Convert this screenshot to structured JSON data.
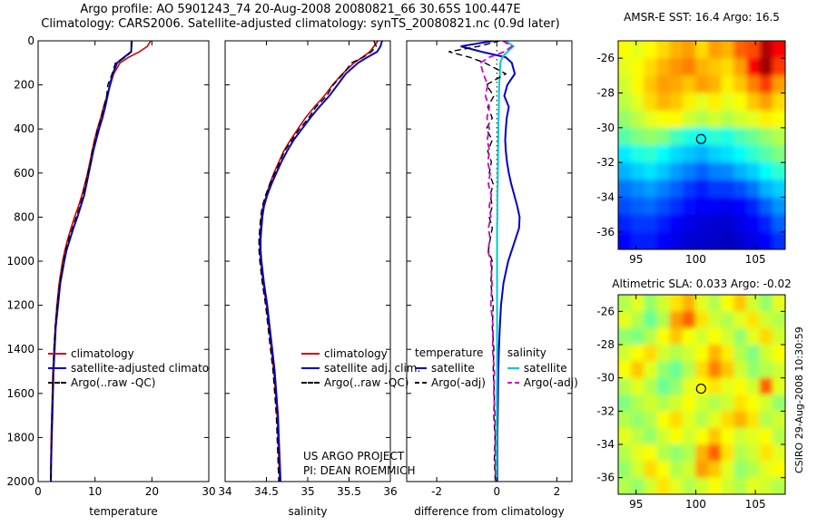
{
  "header": {
    "line1": "Argo profile: AO 5901243_74 20-Aug-2008 20080821_66 30.65S 100.447E",
    "line2": "Climatology: CARS2006. Satellite-adjusted climatology: synTS_20080821.nc (0.9d later)"
  },
  "footer": {
    "credit": "CSIRO 29-Aug-2008 10:30:59"
  },
  "colors": {
    "climatology": "#cc0000",
    "satellite_adjusted": "#0000cc",
    "argo": "#000000",
    "salinity_satellite": "#00cccc",
    "salinity_argo": "#cc00cc"
  },
  "chart_data": [
    {
      "id": "temperature_profile",
      "type": "line",
      "xlabel": "temperature",
      "xlim": [
        0,
        30
      ],
      "xticks": [
        0,
        10,
        20,
        30
      ],
      "ylim": [
        0,
        2000
      ],
      "yticks": [
        0,
        200,
        400,
        600,
        800,
        1000,
        1200,
        1400,
        1600,
        1800,
        2000
      ],
      "depths": [
        0,
        25,
        50,
        75,
        100,
        150,
        200,
        250,
        300,
        350,
        400,
        450,
        500,
        550,
        600,
        650,
        700,
        750,
        800,
        850,
        900,
        950,
        1000,
        1100,
        1200,
        1300,
        1400,
        1500,
        1600,
        1700,
        1800,
        1900,
        2000
      ],
      "series": [
        {
          "name": "climatology",
          "color": "#cc0000",
          "dash": false,
          "width": 1.6,
          "values": [
            19.8,
            19.2,
            17.8,
            15.9,
            14.4,
            13.3,
            12.7,
            12.1,
            11.5,
            11.0,
            10.4,
            9.9,
            9.5,
            9.1,
            8.7,
            8.2,
            7.7,
            7.1,
            6.4,
            5.8,
            5.2,
            4.7,
            4.3,
            3.7,
            3.3,
            3.0,
            2.8,
            2.6,
            2.5,
            2.4,
            2.3,
            2.25,
            2.2
          ]
        },
        {
          "name": "satellite-adjusted climatology",
          "color": "#0000cc",
          "dash": false,
          "width": 2,
          "values": [
            16.4,
            16.4,
            16.35,
            15.1,
            13.9,
            13.1,
            12.6,
            12.2,
            11.8,
            11.3,
            10.7,
            10.2,
            9.7,
            9.3,
            8.9,
            8.5,
            8.1,
            7.5,
            6.9,
            6.2,
            5.6,
            5.0,
            4.6,
            3.9,
            3.5,
            3.1,
            2.9,
            2.7,
            2.6,
            2.5,
            2.4,
            2.3,
            2.25
          ]
        },
        {
          "name": "Argo(..raw -QC)",
          "color": "#000000",
          "dash": true,
          "width": 1.4,
          "values": [
            16.5,
            16.45,
            16.4,
            15.3,
            13.6,
            13.0,
            12.25,
            12.05,
            11.55,
            11.1,
            10.45,
            10.05,
            9.5,
            9.25,
            8.75,
            8.35,
            7.9,
            7.35,
            6.7,
            6.05,
            5.4,
            4.85,
            4.45,
            3.8,
            3.35,
            3.0,
            2.8,
            2.65,
            2.55,
            2.45,
            2.35,
            2.3,
            2.2
          ]
        }
      ],
      "legend": [
        {
          "label": "climatology",
          "color": "#cc0000",
          "dash": false
        },
        {
          "label": "satellite-adjusted climatology",
          "color": "#0000cc",
          "dash": false
        },
        {
          "label": "Argo(..raw -QC)",
          "color": "#000000",
          "dash": true
        }
      ]
    },
    {
      "id": "salinity_profile",
      "type": "line",
      "xlabel": "salinity",
      "xlim": [
        34,
        36
      ],
      "xticks": [
        34,
        34.5,
        35,
        35.5,
        36
      ],
      "ylim": [
        0,
        2000
      ],
      "yticks": [
        0,
        200,
        400,
        600,
        800,
        1000,
        1200,
        1400,
        1600,
        1800,
        2000
      ],
      "depths": [
        0,
        25,
        50,
        75,
        100,
        150,
        200,
        250,
        300,
        350,
        400,
        450,
        500,
        550,
        600,
        650,
        700,
        750,
        800,
        850,
        900,
        950,
        1000,
        1100,
        1200,
        1300,
        1400,
        1500,
        1600,
        1700,
        1800,
        1900,
        2000
      ],
      "series": [
        {
          "name": "climatology",
          "color": "#cc0000",
          "dash": false,
          "width": 1.6,
          "values": [
            35.85,
            35.8,
            35.75,
            35.66,
            35.56,
            35.42,
            35.3,
            35.2,
            35.08,
            34.97,
            34.88,
            34.79,
            34.71,
            34.65,
            34.59,
            34.54,
            34.5,
            34.46,
            34.44,
            34.43,
            34.42,
            34.42,
            34.43,
            34.46,
            34.5,
            34.53,
            34.56,
            34.59,
            34.61,
            34.63,
            34.64,
            34.65,
            34.66
          ]
        },
        {
          "name": "satellite adj. clim.",
          "color": "#0000cc",
          "dash": false,
          "width": 2,
          "values": [
            35.9,
            35.88,
            35.84,
            35.72,
            35.61,
            35.46,
            35.36,
            35.26,
            35.14,
            35.03,
            34.93,
            34.83,
            34.75,
            34.68,
            34.62,
            34.56,
            34.51,
            34.47,
            34.45,
            34.44,
            34.43,
            34.43,
            34.44,
            34.47,
            34.51,
            34.54,
            34.57,
            34.6,
            34.62,
            34.64,
            34.65,
            34.66,
            34.67
          ]
        },
        {
          "name": "Argo(..raw -QC)",
          "color": "#000000",
          "dash": true,
          "width": 1.4,
          "values": [
            35.8,
            35.83,
            35.77,
            35.67,
            35.53,
            35.43,
            35.31,
            35.23,
            35.1,
            35.01,
            34.9,
            34.81,
            34.72,
            34.66,
            34.6,
            34.54,
            34.49,
            34.45,
            34.43,
            34.42,
            34.41,
            34.41,
            34.42,
            34.45,
            34.49,
            34.52,
            34.55,
            34.58,
            34.6,
            34.62,
            34.63,
            34.64,
            34.65
          ]
        }
      ],
      "legend": [
        {
          "label": "climatology",
          "color": "#cc0000",
          "dash": false
        },
        {
          "label": "satellite adj. clim.",
          "color": "#0000cc",
          "dash": false
        },
        {
          "label": "Argo(..raw -QC)",
          "color": "#000000",
          "dash": true
        }
      ],
      "annotations": [
        "US ARGO PROJECT",
        "PI: DEAN ROEMMICH"
      ]
    },
    {
      "id": "difference_profile",
      "type": "line",
      "xlabel": "difference from climatology",
      "xlim": [
        -3,
        2.5
      ],
      "xticks": [
        -2,
        0,
        2
      ],
      "refline": 0,
      "ylim": [
        0,
        2000
      ],
      "yticks": [
        0,
        200,
        400,
        600,
        800,
        1000,
        1200,
        1400,
        1600,
        1800,
        2000
      ],
      "depths": [
        0,
        25,
        50,
        75,
        100,
        150,
        200,
        250,
        300,
        350,
        400,
        450,
        500,
        550,
        600,
        650,
        700,
        750,
        800,
        850,
        900,
        950,
        1000,
        1100,
        1200,
        1300,
        1400,
        1500,
        1600,
        1700,
        1800,
        1900,
        2000
      ],
      "series": [
        {
          "name": "temperature satellite",
          "color": "#0000cc",
          "dash": false,
          "width": 2,
          "values": [
            -0.1,
            -1.2,
            -0.5,
            0.3,
            0.5,
            0.6,
            0.35,
            0.25,
            0.4,
            0.33,
            0.3,
            0.28,
            0.3,
            0.34,
            0.4,
            0.48,
            0.58,
            0.68,
            0.76,
            0.74,
            0.62,
            0.5,
            0.38,
            0.22,
            0.14,
            0.1,
            0.07,
            0.05,
            0.04,
            0.03,
            0.02,
            0.02,
            0.02
          ]
        },
        {
          "name": "salinity satellite",
          "color": "#00cccc",
          "dash": false,
          "width": 2,
          "values": [
            0.3,
            0.55,
            0.35,
            0.18,
            0.12,
            0.1,
            0.08,
            0.07,
            0.07,
            0.06,
            0.05,
            0.05,
            0.04,
            0.04,
            0.03,
            0.03,
            0.02,
            0.02,
            0.02,
            0.01,
            0.01,
            0.01,
            0.01,
            0.01,
            0.01,
            0.01,
            0.01,
            0.01,
            0.0,
            0.0,
            0.0,
            0.0,
            0.0
          ]
        },
        {
          "name": "temperature Argo(-adj)",
          "color": "#000000",
          "dash": true,
          "width": 1.4,
          "values": [
            0.1,
            -0.6,
            -1.6,
            -0.9,
            -0.4,
            0.3,
            -0.35,
            -0.1,
            -0.3,
            -0.15,
            -0.35,
            -0.15,
            -0.3,
            -0.18,
            -0.25,
            -0.12,
            -0.22,
            -0.15,
            -0.25,
            -0.15,
            -0.22,
            -0.28,
            -0.15,
            -0.2,
            -0.12,
            -0.15,
            -0.1,
            -0.12,
            -0.08,
            -0.1,
            -0.06,
            -0.08,
            -0.05
          ]
        },
        {
          "name": "salinity Argo(-adj)",
          "color": "#cc00cc",
          "dash": true,
          "width": 1.8,
          "values": [
            0.2,
            0.5,
            0.25,
            -0.25,
            -0.55,
            -0.45,
            -0.3,
            -0.38,
            -0.25,
            -0.33,
            -0.25,
            -0.32,
            -0.24,
            -0.3,
            -0.22,
            -0.28,
            -0.18,
            -0.25,
            -0.2,
            -0.28,
            -0.22,
            -0.3,
            -0.2,
            -0.16,
            -0.2,
            -0.12,
            -0.14,
            -0.08,
            -0.1,
            -0.06,
            -0.05,
            -0.05,
            -0.04
          ]
        }
      ],
      "legend_cols": [
        {
          "header": "temperature",
          "entries": [
            {
              "label": "satellite",
              "color": "#0000cc",
              "dash": false
            },
            {
              "label": "Argo(-adj)",
              "color": "#000000",
              "dash": true
            }
          ]
        },
        {
          "header": "salinity",
          "entries": [
            {
              "label": "satellite",
              "color": "#00cccc",
              "dash": false
            },
            {
              "label": "Argo(-adj)",
              "color": "#cc00cc",
              "dash": true
            }
          ]
        }
      ]
    },
    {
      "id": "sst_map",
      "type": "heatmap",
      "title": "AMSR-E SST: 16.4 Argo: 16.5",
      "xlim": [
        93.5,
        107.5
      ],
      "ylim": [
        -25,
        -37
      ],
      "xticks": [
        95,
        100,
        105
      ],
      "yticks": [
        -26,
        -28,
        -30,
        -32,
        -34,
        -36
      ],
      "marker": {
        "lon": 100.447,
        "lat": -30.65
      },
      "grid": [
        [
          0.62,
          0.6,
          0.63,
          0.66,
          0.7,
          0.72,
          0.66,
          0.72,
          0.7,
          0.78,
          0.8,
          0.95,
          0.88
        ],
        [
          0.6,
          0.62,
          0.66,
          0.7,
          0.73,
          0.75,
          0.7,
          0.68,
          0.66,
          0.72,
          0.88,
          0.97,
          0.82
        ],
        [
          0.58,
          0.63,
          0.68,
          0.72,
          0.71,
          0.68,
          0.72,
          0.7,
          0.64,
          0.68,
          0.75,
          0.82,
          0.72
        ],
        [
          0.56,
          0.6,
          0.66,
          0.7,
          0.68,
          0.64,
          0.6,
          0.64,
          0.6,
          0.62,
          0.68,
          0.72,
          0.66
        ],
        [
          0.52,
          0.56,
          0.6,
          0.62,
          0.63,
          0.58,
          0.55,
          0.58,
          0.55,
          0.58,
          0.6,
          0.64,
          0.62
        ],
        [
          0.46,
          0.5,
          0.52,
          0.5,
          0.44,
          0.4,
          0.38,
          0.42,
          0.4,
          0.45,
          0.48,
          0.52,
          0.55
        ],
        [
          0.36,
          0.4,
          0.42,
          0.38,
          0.34,
          0.32,
          0.3,
          0.33,
          0.35,
          0.38,
          0.42,
          0.46,
          0.5
        ],
        [
          0.3,
          0.33,
          0.35,
          0.32,
          0.28,
          0.25,
          0.22,
          0.25,
          0.26,
          0.3,
          0.33,
          0.38,
          0.42
        ],
        [
          0.24,
          0.26,
          0.28,
          0.25,
          0.22,
          0.18,
          0.15,
          0.18,
          0.18,
          0.2,
          0.24,
          0.3,
          0.33
        ],
        [
          0.2,
          0.22,
          0.23,
          0.2,
          0.17,
          0.14,
          0.12,
          0.12,
          0.11,
          0.13,
          0.16,
          0.22,
          0.27
        ],
        [
          0.16,
          0.18,
          0.18,
          0.15,
          0.12,
          0.1,
          0.09,
          0.08,
          0.08,
          0.1,
          0.12,
          0.16,
          0.22
        ],
        [
          0.13,
          0.15,
          0.15,
          0.12,
          0.1,
          0.08,
          0.08,
          0.07,
          0.06,
          0.08,
          0.1,
          0.13,
          0.17
        ]
      ]
    },
    {
      "id": "sla_map",
      "type": "heatmap",
      "title": "Altimetric SLA: 0.033 Argo: -0.02",
      "xlim": [
        93.5,
        107.5
      ],
      "ylim": [
        -25,
        -37
      ],
      "xticks": [
        95,
        100,
        105
      ],
      "yticks": [
        -26,
        -28,
        -30,
        -32,
        -34,
        -36
      ],
      "marker": {
        "lon": 100.447,
        "lat": -30.65
      },
      "grid": [
        [
          0.55,
          0.6,
          0.52,
          0.58,
          0.65,
          0.7,
          0.6,
          0.55,
          0.62,
          0.68,
          0.58,
          0.52,
          0.6
        ],
        [
          0.6,
          0.55,
          0.48,
          0.55,
          0.72,
          0.78,
          0.65,
          0.58,
          0.55,
          0.6,
          0.65,
          0.58,
          0.55
        ],
        [
          0.52,
          0.5,
          0.55,
          0.62,
          0.68,
          0.62,
          0.58,
          0.62,
          0.58,
          0.52,
          0.6,
          0.66,
          0.58
        ],
        [
          0.58,
          0.62,
          0.66,
          0.58,
          0.55,
          0.58,
          0.62,
          0.7,
          0.64,
          0.55,
          0.5,
          0.58,
          0.62
        ],
        [
          0.62,
          0.68,
          0.6,
          0.52,
          0.48,
          0.55,
          0.66,
          0.75,
          0.68,
          0.58,
          0.52,
          0.55,
          0.58
        ],
        [
          0.55,
          0.6,
          0.55,
          0.48,
          0.52,
          0.6,
          0.62,
          0.65,
          0.6,
          0.62,
          0.58,
          0.78,
          0.6
        ],
        [
          0.5,
          0.55,
          0.58,
          0.55,
          0.58,
          0.62,
          0.58,
          0.55,
          0.58,
          0.65,
          0.62,
          0.58,
          0.52
        ],
        [
          0.55,
          0.52,
          0.55,
          0.62,
          0.66,
          0.6,
          0.55,
          0.6,
          0.66,
          0.7,
          0.65,
          0.55,
          0.58
        ],
        [
          0.6,
          0.56,
          0.52,
          0.58,
          0.62,
          0.58,
          0.62,
          0.68,
          0.62,
          0.58,
          0.6,
          0.62,
          0.55
        ],
        [
          0.55,
          0.6,
          0.62,
          0.55,
          0.52,
          0.55,
          0.7,
          0.78,
          0.65,
          0.55,
          0.58,
          0.65,
          0.6
        ],
        [
          0.52,
          0.58,
          0.66,
          0.62,
          0.55,
          0.58,
          0.72,
          0.68,
          0.6,
          0.52,
          0.55,
          0.6,
          0.62
        ],
        [
          0.55,
          0.52,
          0.58,
          0.65,
          0.6,
          0.55,
          0.58,
          0.62,
          0.58,
          0.55,
          0.6,
          0.58,
          0.55
        ]
      ]
    }
  ]
}
